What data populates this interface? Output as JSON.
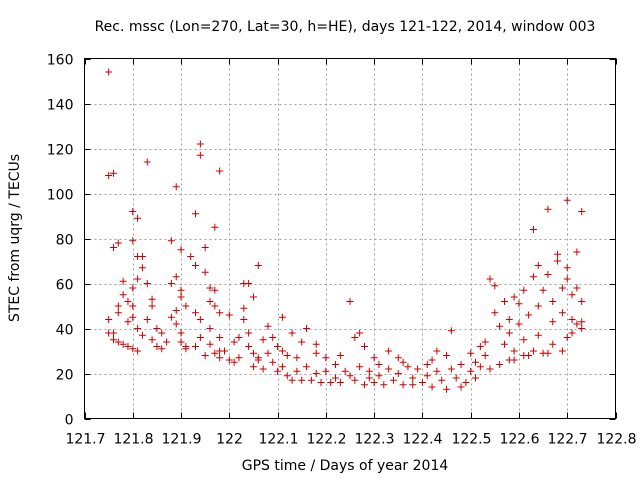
{
  "chart_data": {
    "type": "scatter",
    "title": "Rec. mssc (Lon=270, Lat=30, h=HE), days 121-122, 2014, window 003",
    "xlabel": "GPS time / Days of year 2014",
    "ylabel": "STEC from uqrg / TECUs",
    "xlim": [
      121.7,
      122.8
    ],
    "ylim": [
      0,
      160
    ],
    "xticks": [
      121.7,
      121.8,
      121.9,
      122.0,
      122.1,
      122.2,
      122.3,
      122.4,
      122.5,
      122.6,
      122.7,
      122.8
    ],
    "xtick_labels": [
      "121.7",
      "121.8",
      "121.9",
      "122",
      "122.1",
      "122.2",
      "122.3",
      "122.4",
      "122.5",
      "122.6",
      "122.7",
      "122.8"
    ],
    "yticks": [
      0,
      20,
      40,
      60,
      80,
      100,
      120,
      140,
      160
    ],
    "ytick_labels": [
      "0",
      "20",
      "40",
      "60",
      "80",
      "100",
      "120",
      "140",
      "160"
    ],
    "grid": true,
    "marker": "+",
    "series": [
      {
        "color": "#cc0000",
        "points": [
          [
            121.75,
            154
          ],
          [
            121.75,
            108
          ],
          [
            121.76,
            109
          ],
          [
            121.75,
            44
          ],
          [
            121.75,
            38
          ],
          [
            121.76,
            38
          ],
          [
            121.76,
            35
          ],
          [
            121.77,
            34
          ],
          [
            121.76,
            76
          ],
          [
            121.77,
            78
          ],
          [
            121.78,
            61
          ],
          [
            121.78,
            55
          ],
          [
            121.77,
            50
          ],
          [
            121.77,
            47
          ],
          [
            121.79,
            52
          ],
          [
            121.79,
            43
          ],
          [
            121.78,
            33
          ],
          [
            121.79,
            32
          ],
          [
            121.8,
            92
          ],
          [
            121.8,
            79
          ],
          [
            121.81,
            72
          ],
          [
            121.81,
            89
          ],
          [
            121.82,
            72
          ],
          [
            121.82,
            67
          ],
          [
            121.81,
            62
          ],
          [
            121.8,
            58
          ],
          [
            121.8,
            50
          ],
          [
            121.8,
            45
          ],
          [
            121.81,
            40
          ],
          [
            121.82,
            37
          ],
          [
            121.8,
            31
          ],
          [
            121.81,
            30
          ],
          [
            121.83,
            114
          ],
          [
            121.83,
            60
          ],
          [
            121.84,
            53
          ],
          [
            121.84,
            50
          ],
          [
            121.83,
            44
          ],
          [
            121.85,
            40
          ],
          [
            121.84,
            35
          ],
          [
            121.85,
            32
          ],
          [
            121.86,
            38
          ],
          [
            121.86,
            31
          ],
          [
            121.87,
            34
          ],
          [
            121.88,
            79
          ],
          [
            121.88,
            60
          ],
          [
            121.89,
            103
          ],
          [
            121.89,
            63
          ],
          [
            121.89,
            48
          ],
          [
            121.88,
            45
          ],
          [
            121.89,
            42
          ],
          [
            121.9,
            75
          ],
          [
            121.9,
            57
          ],
          [
            121.9,
            54
          ],
          [
            121.91,
            50
          ],
          [
            121.9,
            38
          ],
          [
            121.9,
            34
          ],
          [
            121.91,
            32
          ],
          [
            121.91,
            31
          ],
          [
            121.92,
            72
          ],
          [
            121.93,
            91
          ],
          [
            121.93,
            68
          ],
          [
            121.93,
            47
          ],
          [
            121.94,
            122
          ],
          [
            121.94,
            117
          ],
          [
            121.94,
            44
          ],
          [
            121.94,
            36
          ],
          [
            121.93,
            32
          ],
          [
            121.95,
            28
          ],
          [
            121.95,
            76
          ],
          [
            121.95,
            65
          ],
          [
            121.96,
            58
          ],
          [
            121.96,
            52
          ],
          [
            121.96,
            40
          ],
          [
            121.96,
            33
          ],
          [
            121.97,
            85
          ],
          [
            121.97,
            57
          ],
          [
            121.97,
            50
          ],
          [
            121.98,
            47
          ],
          [
            121.98,
            110
          ],
          [
            121.98,
            36
          ],
          [
            121.98,
            30
          ],
          [
            121.98,
            27
          ],
          [
            121.97,
            29
          ],
          [
            121.99,
            30
          ],
          [
            122.0,
            46
          ],
          [
            122.01,
            34
          ],
          [
            122.01,
            25
          ],
          [
            122.0,
            26
          ],
          [
            122.02,
            27
          ],
          [
            122.02,
            36
          ],
          [
            122.03,
            60
          ],
          [
            122.03,
            49
          ],
          [
            122.04,
            60
          ],
          [
            122.05,
            54
          ],
          [
            122.06,
            68
          ],
          [
            122.03,
            44
          ],
          [
            122.04,
            38
          ],
          [
            122.04,
            32
          ],
          [
            122.05,
            29
          ],
          [
            122.06,
            27
          ],
          [
            122.05,
            23
          ],
          [
            122.06,
            26
          ],
          [
            122.07,
            22
          ],
          [
            122.07,
            35
          ],
          [
            122.08,
            41
          ],
          [
            122.08,
            29
          ],
          [
            122.09,
            36
          ],
          [
            122.09,
            25
          ],
          [
            122.1,
            21
          ],
          [
            122.1,
            32
          ],
          [
            122.11,
            45
          ],
          [
            122.11,
            30
          ],
          [
            122.11,
            23
          ],
          [
            122.12,
            19
          ],
          [
            122.12,
            28
          ],
          [
            122.13,
            17
          ],
          [
            122.13,
            38
          ],
          [
            122.14,
            27
          ],
          [
            122.14,
            21
          ],
          [
            122.15,
            34
          ],
          [
            122.15,
            17
          ],
          [
            122.16,
            40
          ],
          [
            122.16,
            23
          ],
          [
            122.17,
            17
          ],
          [
            122.18,
            33
          ],
          [
            122.18,
            29
          ],
          [
            122.18,
            20
          ],
          [
            122.19,
            16
          ],
          [
            122.2,
            27
          ],
          [
            122.2,
            21
          ],
          [
            122.21,
            16
          ],
          [
            122.22,
            24
          ],
          [
            122.22,
            18
          ],
          [
            122.23,
            28
          ],
          [
            122.23,
            16
          ],
          [
            122.24,
            21
          ],
          [
            122.25,
            52
          ],
          [
            122.25,
            19
          ],
          [
            122.26,
            36
          ],
          [
            122.26,
            17
          ],
          [
            122.27,
            38
          ],
          [
            122.27,
            23
          ],
          [
            122.28,
            15
          ],
          [
            122.28,
            32
          ],
          [
            122.29,
            21
          ],
          [
            122.29,
            18
          ],
          [
            122.3,
            27
          ],
          [
            122.3,
            16
          ],
          [
            122.31,
            24
          ],
          [
            122.31,
            19
          ],
          [
            122.32,
            15
          ],
          [
            122.33,
            30
          ],
          [
            122.33,
            22
          ],
          [
            122.34,
            17
          ],
          [
            122.35,
            27
          ],
          [
            122.35,
            20
          ],
          [
            122.36,
            25
          ],
          [
            122.36,
            15
          ],
          [
            122.37,
            23
          ],
          [
            122.38,
            18
          ],
          [
            122.38,
            15
          ],
          [
            122.39,
            22
          ],
          [
            122.4,
            16
          ],
          [
            122.41,
            24
          ],
          [
            122.41,
            19
          ],
          [
            122.42,
            26
          ],
          [
            122.42,
            14
          ],
          [
            122.43,
            21
          ],
          [
            122.43,
            30
          ],
          [
            122.44,
            17
          ],
          [
            122.45,
            28
          ],
          [
            122.45,
            13
          ],
          [
            122.46,
            39
          ],
          [
            122.46,
            22
          ],
          [
            122.47,
            18
          ],
          [
            122.48,
            24
          ],
          [
            122.48,
            14
          ],
          [
            122.49,
            16
          ],
          [
            122.5,
            21
          ],
          [
            122.5,
            29
          ],
          [
            122.51,
            25
          ],
          [
            122.51,
            18
          ],
          [
            122.52,
            23
          ],
          [
            122.52,
            32
          ],
          [
            122.53,
            34
          ],
          [
            122.53,
            28
          ],
          [
            122.54,
            22
          ],
          [
            122.54,
            62
          ],
          [
            122.55,
            59
          ],
          [
            122.55,
            47
          ],
          [
            122.56,
            41
          ],
          [
            122.56,
            24
          ],
          [
            122.57,
            52
          ],
          [
            122.57,
            33
          ],
          [
            122.58,
            44
          ],
          [
            122.58,
            38
          ],
          [
            122.58,
            26
          ],
          [
            122.59,
            54
          ],
          [
            122.59,
            30
          ],
          [
            122.6,
            51
          ],
          [
            122.6,
            42
          ],
          [
            122.61,
            35
          ],
          [
            122.61,
            57
          ],
          [
            122.62,
            28
          ],
          [
            122.62,
            46
          ],
          [
            122.63,
            63
          ],
          [
            122.63,
            84
          ],
          [
            122.64,
            68
          ],
          [
            122.64,
            50
          ],
          [
            122.64,
            37
          ],
          [
            122.65,
            29
          ],
          [
            122.65,
            57
          ],
          [
            122.66,
            93
          ],
          [
            122.66,
            64
          ],
          [
            122.67,
            52
          ],
          [
            122.67,
            43
          ],
          [
            122.67,
            33
          ],
          [
            122.68,
            73
          ],
          [
            122.68,
            70
          ],
          [
            122.69,
            58
          ],
          [
            122.69,
            47
          ],
          [
            122.7,
            97
          ],
          [
            122.7,
            67
          ],
          [
            122.7,
            62
          ],
          [
            122.71,
            55
          ],
          [
            122.71,
            44
          ],
          [
            122.71,
            38
          ],
          [
            122.72,
            74
          ],
          [
            122.72,
            58
          ],
          [
            122.73,
            92
          ],
          [
            122.73,
            52
          ],
          [
            122.73,
            43
          ],
          [
            122.73,
            40
          ],
          [
            122.72,
            42
          ],
          [
            122.7,
            36
          ],
          [
            122.69,
            30
          ],
          [
            122.66,
            29
          ],
          [
            122.63,
            30
          ],
          [
            122.61,
            28
          ],
          [
            122.59,
            26
          ]
        ]
      }
    ]
  }
}
